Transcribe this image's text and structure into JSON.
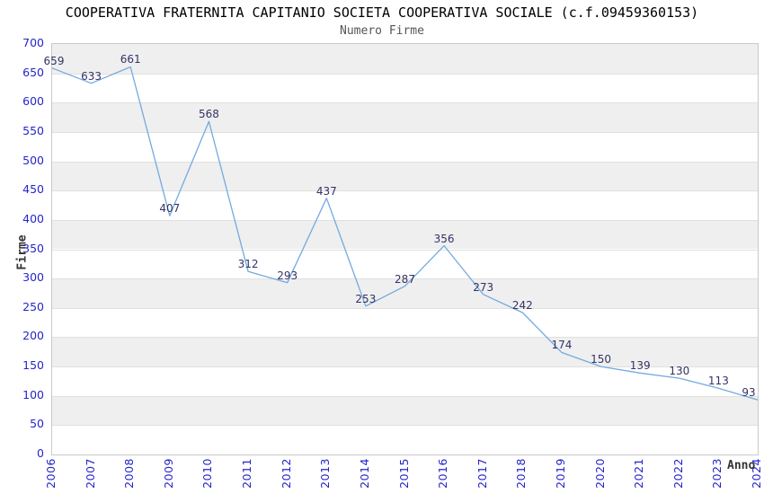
{
  "title": "COOPERATIVA FRATERNITA CAPITANIO SOCIETA COOPERATIVA SOCIALE (c.f.09459360153)",
  "subtitle": "Numero Firme",
  "colors": {
    "line": "#74aadf",
    "point_label": "#333366",
    "tick_label": "#2525cc",
    "band_gray": "#efefef",
    "band_white": "#ffffff",
    "grid_line": "#e0e0e0",
    "plot_border": "#c9c9c9",
    "title": "#000000",
    "subtitle": "#555555",
    "axis_title": "#333333"
  },
  "chart_data": {
    "type": "line",
    "title": "COOPERATIVA FRATERNITA CAPITANIO SOCIETA COOPERATIVA SOCIALE (c.f.09459360153)",
    "subtitle": "Numero Firme",
    "categories": [
      "2006",
      "2007",
      "2008",
      "2009",
      "2010",
      "2011",
      "2012",
      "2013",
      "2014",
      "2015",
      "2016",
      "2017",
      "2018",
      "2019",
      "2020",
      "2021",
      "2022",
      "2023",
      "2024"
    ],
    "values": [
      659,
      633,
      661,
      407,
      568,
      312,
      293,
      437,
      253,
      287,
      356,
      273,
      242,
      174,
      150,
      139,
      130,
      113,
      93
    ],
    "xlabel": "Anno",
    "ylabel": "Firme",
    "ylim": [
      0,
      700
    ],
    "ytick_step": 50,
    "yticks": [
      0,
      50,
      100,
      150,
      200,
      250,
      300,
      350,
      400,
      450,
      500,
      550,
      600,
      650,
      700
    ],
    "grid": "horizontal-bands-alternating",
    "legend": "none",
    "data_labels": "above-points"
  }
}
